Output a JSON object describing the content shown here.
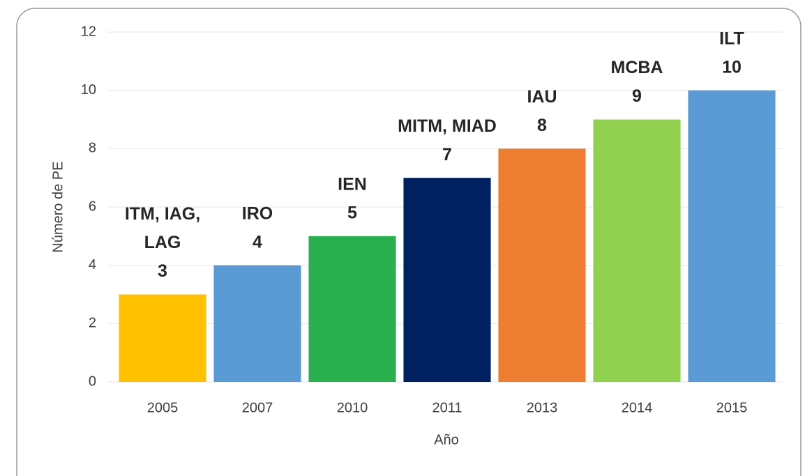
{
  "chart_data": {
    "type": "bar",
    "categories": [
      "2005",
      "2007",
      "2010",
      "2011",
      "2013",
      "2014",
      "2015"
    ],
    "values": [
      3,
      4,
      5,
      7,
      8,
      9,
      10
    ],
    "colors": [
      "#FFC000",
      "#5B9BD5",
      "#2AB04F",
      "#002060",
      "#ED7D31",
      "#92D050",
      "#5B9BD5"
    ],
    "bar_labels": [
      [
        "ITM, IAG,",
        "LAG"
      ],
      [
        "IRO"
      ],
      [
        "IEN"
      ],
      [
        "MITM, MIAD"
      ],
      [
        "IAU"
      ],
      [
        "MCBA"
      ],
      [
        "ILT"
      ]
    ],
    "ylim": [
      0,
      12
    ],
    "yticks": [
      0,
      2,
      4,
      6,
      8,
      10,
      12
    ],
    "grid": true,
    "xlabel": "Año",
    "ylabel": "Número de PE"
  }
}
